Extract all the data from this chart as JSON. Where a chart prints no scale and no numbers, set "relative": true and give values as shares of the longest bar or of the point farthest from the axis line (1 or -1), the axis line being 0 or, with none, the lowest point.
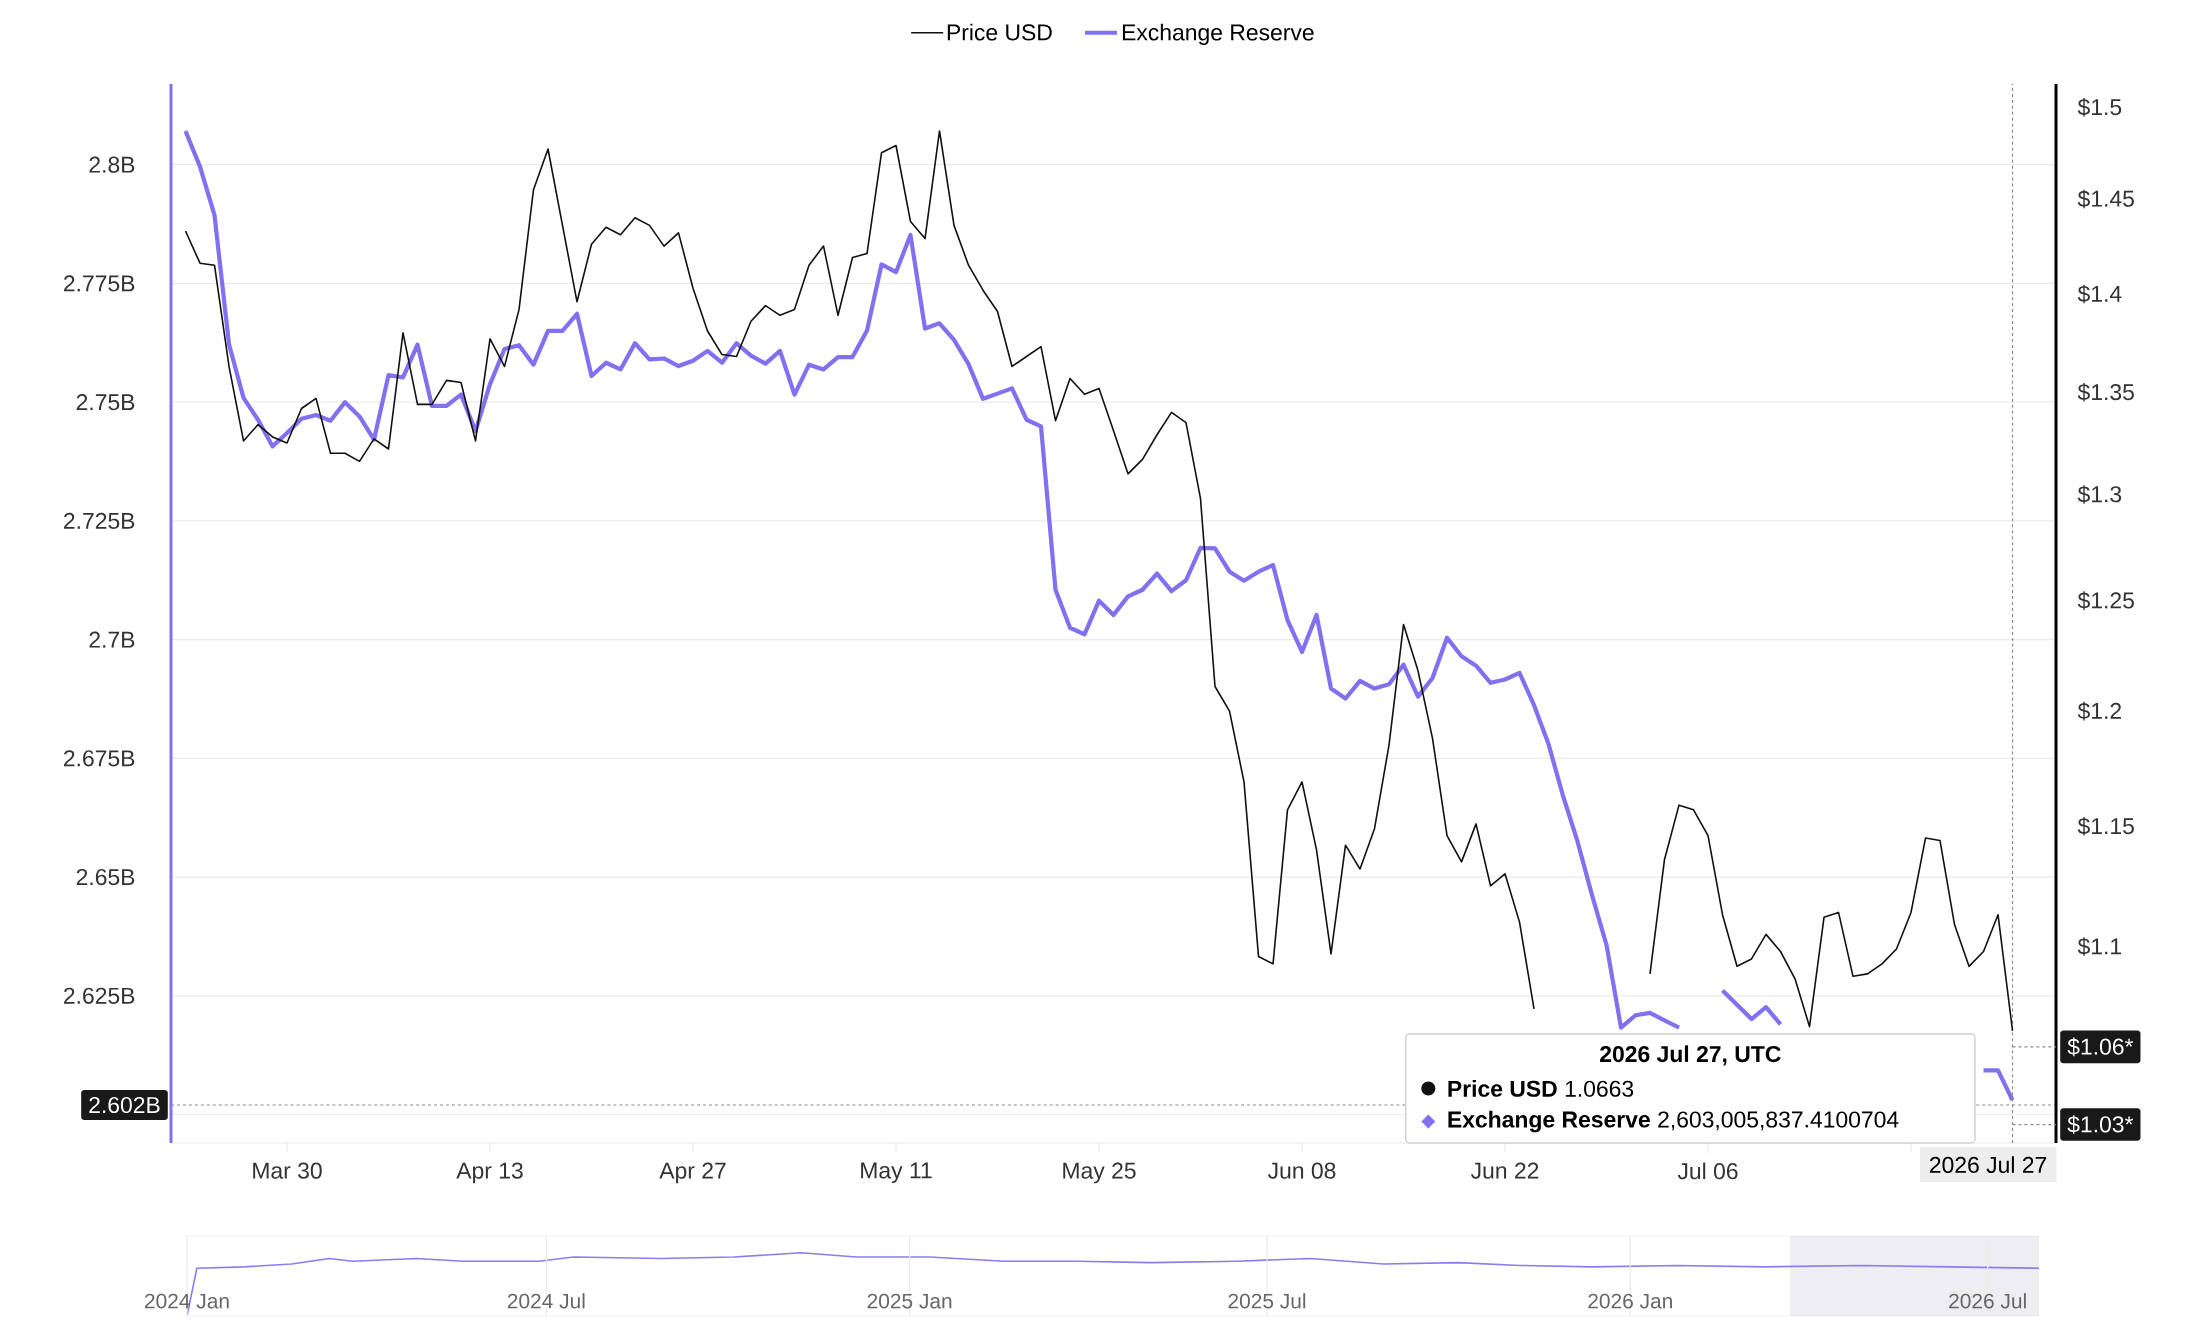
{
  "chart_data": [
    {
      "type": "line",
      "x": [
        "2026-03-23",
        "2026-03-24",
        "2026-03-25",
        "2026-03-26",
        "2026-03-27",
        "2026-03-28",
        "2026-03-29",
        "2026-03-30",
        "2026-03-31",
        "2026-04-01",
        "2026-04-02",
        "2026-04-03",
        "2026-04-04",
        "2026-04-05",
        "2026-04-06",
        "2026-04-07",
        "2026-04-08",
        "2026-04-09",
        "2026-04-10",
        "2026-04-11",
        "2026-04-12",
        "2026-04-13",
        "2026-04-14",
        "2026-04-15",
        "2026-04-16",
        "2026-04-17",
        "2026-04-18",
        "2026-04-19",
        "2026-04-20",
        "2026-04-21",
        "2026-04-22",
        "2026-04-23",
        "2026-04-24",
        "2026-04-25",
        "2026-04-26",
        "2026-04-27",
        "2026-04-28",
        "2026-04-29",
        "2026-04-30",
        "2026-05-01",
        "2026-05-02",
        "2026-05-03",
        "2026-05-04",
        "2026-05-05",
        "2026-05-06",
        "2026-05-07",
        "2026-05-08",
        "2026-05-09",
        "2026-05-10",
        "2026-05-11",
        "2026-05-12",
        "2026-05-13",
        "2026-05-14",
        "2026-05-15",
        "2026-05-16",
        "2026-05-17",
        "2026-05-18",
        "2026-05-19",
        "2026-05-20",
        "2026-05-21",
        "2026-05-22",
        "2026-05-23",
        "2026-05-24",
        "2026-05-25",
        "2026-05-26",
        "2026-05-27",
        "2026-05-28",
        "2026-05-29",
        "2026-05-30",
        "2026-05-31",
        "2026-06-01",
        "2026-06-02",
        "2026-06-03",
        "2026-06-04",
        "2026-06-05",
        "2026-06-06",
        "2026-06-07",
        "2026-06-08",
        "2026-06-09",
        "2026-06-10",
        "2026-06-11",
        "2026-06-12",
        "2026-06-13",
        "2026-06-14",
        "2026-06-15",
        "2026-06-16",
        "2026-06-17",
        "2026-06-18",
        "2026-06-19",
        "2026-06-20",
        "2026-06-21",
        "2026-06-22",
        "2026-06-23",
        "2026-06-24",
        "2026-06-25",
        "2026-06-26",
        "2026-06-27",
        "2026-06-28",
        "2026-06-29",
        "2026-06-30",
        "2026-07-01",
        "2026-07-02",
        "2026-07-03",
        "2026-07-04",
        "2026-07-05",
        "2026-07-06",
        "2026-07-07",
        "2026-07-08",
        "2026-07-09",
        "2026-07-10",
        "2026-07-11",
        "2026-07-12",
        "2026-07-13",
        "2026-07-14",
        "2026-07-15",
        "2026-07-16",
        "2026-07-17",
        "2026-07-18",
        "2026-07-19",
        "2026-07-20",
        "2026-07-21",
        "2026-07-22",
        "2026-07-23",
        "2026-07-24",
        "2026-07-25",
        "2026-07-26",
        "2026-07-27"
      ],
      "series": [
        {
          "name": "Price USD",
          "color": "#111111",
          "axis": "y2",
          "values": [
            1.433,
            1.416,
            1.415,
            1.363,
            1.326,
            1.334,
            1.328,
            1.325,
            1.342,
            1.347,
            1.32,
            1.32,
            1.316,
            1.327,
            1.322,
            1.38,
            1.344,
            1.344,
            1.356,
            1.355,
            1.326,
            1.377,
            1.363,
            1.392,
            1.455,
            1.477,
            1.436,
            1.396,
            1.426,
            1.435,
            1.431,
            1.44,
            1.436,
            1.425,
            1.432,
            1.403,
            1.381,
            1.369,
            1.368,
            1.386,
            1.394,
            1.389,
            1.392,
            1.415,
            1.425,
            1.389,
            1.419,
            1.421,
            1.475,
            1.479,
            1.438,
            1.429,
            1.487,
            1.436,
            1.415,
            1.402,
            1.391,
            1.363,
            1.368,
            1.373,
            1.336,
            1.357,
            1.349,
            1.352,
            1.331,
            1.31,
            1.317,
            1.329,
            1.34,
            1.335,
            1.298,
            1.211,
            1.2,
            1.169,
            1.096,
            1.093,
            1.157,
            1.169,
            1.14,
            1.097,
            1.142,
            1.132,
            1.149,
            1.185,
            1.239,
            1.218,
            1.188,
            1.146,
            1.135,
            1.151,
            1.125,
            1.13,
            1.11,
            1.075,
            null,
            null,
            null,
            null,
            null,
            null,
            null,
            1.089,
            1.136,
            1.159,
            1.157,
            1.146,
            1.113,
            1.092,
            1.095,
            1.105,
            1.098,
            1.087,
            1.068,
            1.112,
            1.114,
            1.088,
            1.089,
            1.093,
            1.099,
            1.114,
            1.145,
            1.144,
            1.109,
            1.092,
            1.098,
            1.113,
            1.0663
          ]
        },
        {
          "name": "Exchange Reserve",
          "color": "#8170f0",
          "values": [
            2.8071,
            2.7996,
            2.7894,
            2.7622,
            2.7509,
            2.7463,
            2.7407,
            2.7435,
            2.7465,
            2.7473,
            2.7461,
            2.75,
            2.747,
            2.7421,
            2.7557,
            2.7552,
            2.7621,
            2.7492,
            2.7492,
            2.7516,
            2.7439,
            2.7538,
            2.7612,
            2.762,
            2.7579,
            2.765,
            2.765,
            2.7686,
            2.7555,
            2.7583,
            2.7569,
            2.7624,
            2.759,
            2.7592,
            2.7576,
            2.7587,
            2.7608,
            2.7583,
            2.7624,
            2.7598,
            2.7581,
            2.7608,
            2.7516,
            2.7579,
            2.7569,
            2.7595,
            2.7595,
            2.7651,
            2.779,
            2.7774,
            2.7852,
            2.7655,
            2.7666,
            2.7631,
            2.758,
            2.7507,
            2.7518,
            2.7529,
            2.7463,
            2.7449,
            2.7105,
            2.7025,
            2.7011,
            2.7082,
            2.7052,
            2.7091,
            2.7105,
            2.7139,
            2.7102,
            2.7125,
            2.7193,
            2.7192,
            2.7143,
            2.7124,
            2.7143,
            2.7157,
            2.7041,
            2.6974,
            2.7052,
            2.6897,
            2.6876,
            2.6913,
            2.6897,
            2.6906,
            2.6947,
            2.688,
            2.6919,
            2.7004,
            2.6965,
            2.6945,
            2.6909,
            2.6916,
            2.693,
            2.6862,
            2.678,
            2.6671,
            2.6575,
            2.6462,
            2.6357,
            2.6183,
            2.6209,
            2.6214,
            2.6198,
            2.6183,
            null,
            null,
            2.6261,
            2.6231,
            2.6201,
            2.6226,
            2.619,
            null,
            null,
            null,
            null,
            null,
            null,
            null,
            null,
            null,
            null,
            null,
            null,
            null,
            2.6093,
            2.6093,
            2.603
          ]
        }
      ],
      "xlim": [
        "2026-03-22",
        "2026-07-30"
      ],
      "xticks": [
        {
          "value": "2026-03-30",
          "label": "Mar 30"
        },
        {
          "value": "2026-04-13",
          "label": "Apr 13"
        },
        {
          "value": "2026-04-27",
          "label": "Apr 27"
        },
        {
          "value": "2026-05-11",
          "label": "May 11"
        },
        {
          "value": "2026-05-25",
          "label": "May 25"
        },
        {
          "value": "2026-06-08",
          "label": "Jun 08"
        },
        {
          "value": "2026-06-22",
          "label": "Jun 22"
        },
        {
          "value": "2026-07-06",
          "label": "Jul 06"
        },
        {
          "value": "2026-07-20",
          "label": null
        }
      ],
      "ylim": [
        2.594,
        2.817
      ],
      "yticks": [
        {
          "value": 2.6,
          "label": null
        },
        {
          "value": 2.625,
          "label": "2.625B"
        },
        {
          "value": 2.65,
          "label": "2.65B"
        },
        {
          "value": 2.675,
          "label": "2.675B"
        },
        {
          "value": 2.7,
          "label": "2.7B"
        },
        {
          "value": 2.725,
          "label": "2.725B"
        },
        {
          "value": 2.75,
          "label": "2.75B"
        },
        {
          "value": 2.775,
          "label": "2.775B"
        },
        {
          "value": 2.8,
          "label": "2.8B"
        }
      ],
      "y2lim": [
        1.023,
        1.513
      ],
      "y2ticks": [
        {
          "value": 1.1,
          "label": "$1.1"
        },
        {
          "value": 1.15,
          "label": "$1.15"
        },
        {
          "value": 1.2,
          "label": "$1.2"
        },
        {
          "value": 1.25,
          "label": "$1.25"
        },
        {
          "value": 1.3,
          "label": "$1.3"
        },
        {
          "value": 1.35,
          "label": "$1.35"
        },
        {
          "value": 1.4,
          "label": "$1.4"
        },
        {
          "value": 1.45,
          "label": "$1.45"
        },
        {
          "value": 1.5,
          "label": "$1.5"
        }
      ],
      "log": "y2",
      "grid": "y",
      "legend": "top",
      "ref_lines": [
        {
          "axis": "x",
          "value": "2026-07-27",
          "label": "2026 Jul 27",
          "line_style": "dashed"
        },
        {
          "axis": "y",
          "value": 2.602,
          "label": "2.602B",
          "line_style": "dashed"
        },
        {
          "axis": "y2",
          "value": 1.06,
          "label": "$1.06*",
          "line_style": "dashed"
        },
        {
          "axis": "y2",
          "value": 1.03,
          "label": "$1.03*",
          "line_style": "dashed"
        }
      ],
      "annotations": [
        "2026 Jul 27, UTC",
        "**Price USD** 1.0663",
        "**Exchange Reserve** 2,603,005,837.4100704"
      ]
    },
    {
      "type": "line",
      "relative": true,
      "x": [
        "2024-01-01",
        "2024-01-06",
        "2024-01-30",
        "2024-02-23",
        "2024-03-13",
        "2024-03-25",
        "2024-04-26",
        "2024-05-20",
        "2024-06-27",
        "2024-07-15",
        "2024-08-28",
        "2024-10-04",
        "2024-11-07",
        "2024-12-05",
        "2025-01-11",
        "2025-02-18",
        "2025-03-27",
        "2025-05-03",
        "2025-06-16",
        "2025-07-23",
        "2025-08-29",
        "2025-10-06",
        "2025-11-06",
        "2025-12-13",
        "2026-01-25",
        "2026-03-10",
        "2026-04-28",
        "2026-06-11",
        "2026-07-27"
      ],
      "series": [
        {
          "color": "#8b7cf0",
          "values": [
            0,
            0.756,
            0.778,
            0.822,
            0.911,
            0.867,
            0.911,
            0.867,
            0.867,
            0.933,
            0.911,
            0.933,
            1.0,
            0.933,
            0.933,
            0.867,
            0.867,
            0.844,
            0.867,
            0.911,
            0.822,
            0.844,
            0.8,
            0.778,
            0.8,
            0.778,
            0.8,
            0.778,
            0.756
          ]
        }
      ],
      "xlim": [
        "2024-01-01",
        "2026-07-27"
      ],
      "xticks": [
        {
          "value": "2024-01-01",
          "label": "2024 Jan"
        },
        {
          "value": "2024-07-01",
          "label": "2024 Jul"
        },
        {
          "value": "2025-01-01",
          "label": "2025 Jan"
        },
        {
          "value": "2025-07-01",
          "label": "2025 Jul"
        },
        {
          "value": "2026-01-01",
          "label": "2026 Jan"
        },
        {
          "value": "2026-07-01",
          "label": "2026 Jul"
        }
      ],
      "grid": "x",
      "bands": [
        {
          "axis": "x",
          "from": "2026-03-23",
          "to": "2026-07-27",
          "color": "#ededf2"
        }
      ]
    }
  ]
}
